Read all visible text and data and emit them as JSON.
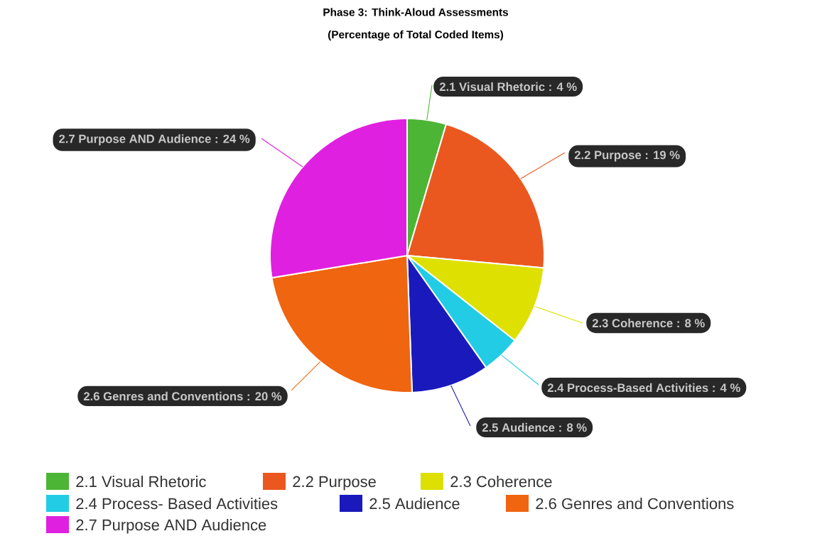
{
  "chart_data": {
    "type": "pie",
    "title": "Phase 3: Think-Aloud Assessments",
    "subtitle": "(Percentage of Total Coded Items)",
    "categories": [
      "2.1 Visual Rhetoric",
      "2.2 Purpose",
      "2.3 Coherence",
      "2.4 Process- Based Activities",
      "2.5 Audience",
      "2.6 Genres and Conventions",
      "2.7 Purpose AND Audience"
    ],
    "values": [
      4,
      19,
      8,
      4,
      8,
      20,
      24
    ],
    "colors": [
      "#4db535",
      "#ea581f",
      "#dde000",
      "#22cce5",
      "#1a1abc",
      "#ef6510",
      "#e020e0"
    ],
    "value_labels": [
      "2.1 Visual Rhetoric : 4 %",
      "2.2 Purpose : 19 %",
      "2.3 Coherence : 8 %",
      "2.4 Process-Based Activities : 4 %",
      "2.5 Audience : 8 %",
      "2.6 Genres and Conventions : 20 %",
      "2.7 Purpose AND Audience : 24 %"
    ],
    "legend": "bottom"
  }
}
